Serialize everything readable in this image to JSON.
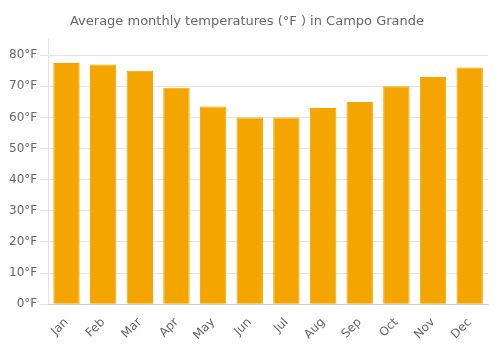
{
  "chart_data": {
    "type": "bar",
    "title": "Average monthly temperatures (°F ) in Campo Grande",
    "categories": [
      "Jan",
      "Feb",
      "Mar",
      "Apr",
      "May",
      "Jun",
      "Jul",
      "Aug",
      "Sep",
      "Oct",
      "Nov",
      "Dec"
    ],
    "values": [
      77.5,
      77.0,
      75.0,
      69.5,
      63.5,
      60.0,
      60.0,
      63.0,
      65.0,
      70.0,
      73.0,
      76.0
    ],
    "color": "#F5A500",
    "ylim": [
      0,
      85
    ],
    "yticks": [
      {
        "value": 0,
        "label": "0°F"
      },
      {
        "value": 10,
        "label": "10°F"
      },
      {
        "value": 20,
        "label": "20°F"
      },
      {
        "value": 30,
        "label": "30°F"
      },
      {
        "value": 40,
        "label": "40°F"
      },
      {
        "value": 50,
        "label": "50°F"
      },
      {
        "value": 60,
        "label": "60°F"
      },
      {
        "value": 70,
        "label": "70°F"
      },
      {
        "value": 80,
        "label": "80°F"
      }
    ],
    "grid": true
  }
}
